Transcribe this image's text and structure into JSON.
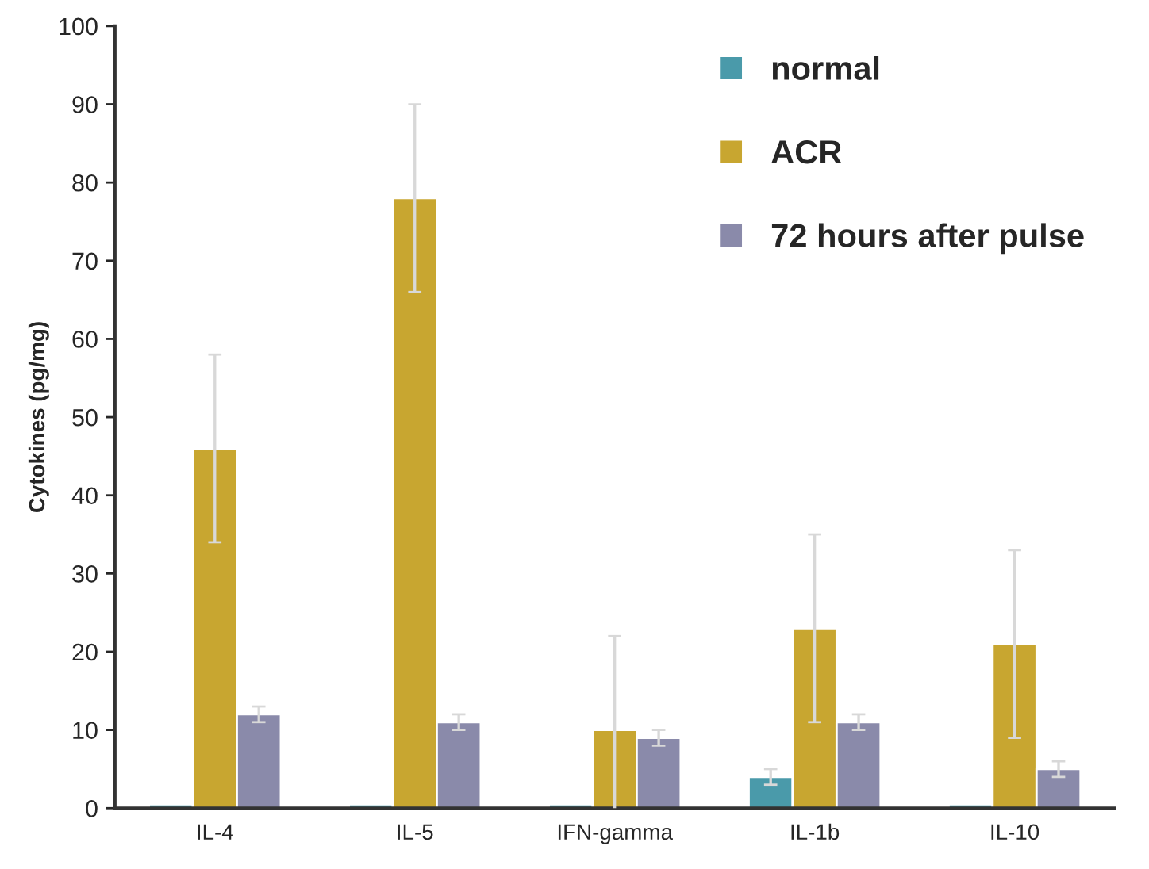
{
  "chart_data": {
    "type": "bar",
    "ylabel": "Cytokines (pg/mg)",
    "categories": [
      "IL-4",
      "IL-5",
      "IFN-gamma",
      "IL-1b",
      "IL-10"
    ],
    "series": [
      {
        "name": "normal",
        "color": "#4a9aaa",
        "values": [
          0.5,
          0.5,
          0.5,
          4,
          0.5
        ],
        "errors": [
          null,
          null,
          null,
          1,
          null
        ]
      },
      {
        "name": "ACR",
        "color": "#c8a630",
        "values": [
          46,
          78,
          10,
          23,
          21
        ],
        "errors": [
          12,
          12,
          12,
          12,
          12
        ]
      },
      {
        "name": "72 hours after pulse",
        "color": "#8a8aaa",
        "values": [
          12,
          11,
          9,
          11,
          5
        ],
        "errors": [
          1,
          1,
          1,
          1,
          1
        ]
      }
    ],
    "ylim": [
      0,
      100
    ],
    "yticks": [
      0,
      10,
      20,
      30,
      40,
      50,
      60,
      70,
      80,
      90,
      100
    ],
    "grid": false,
    "legend": "top right"
  }
}
